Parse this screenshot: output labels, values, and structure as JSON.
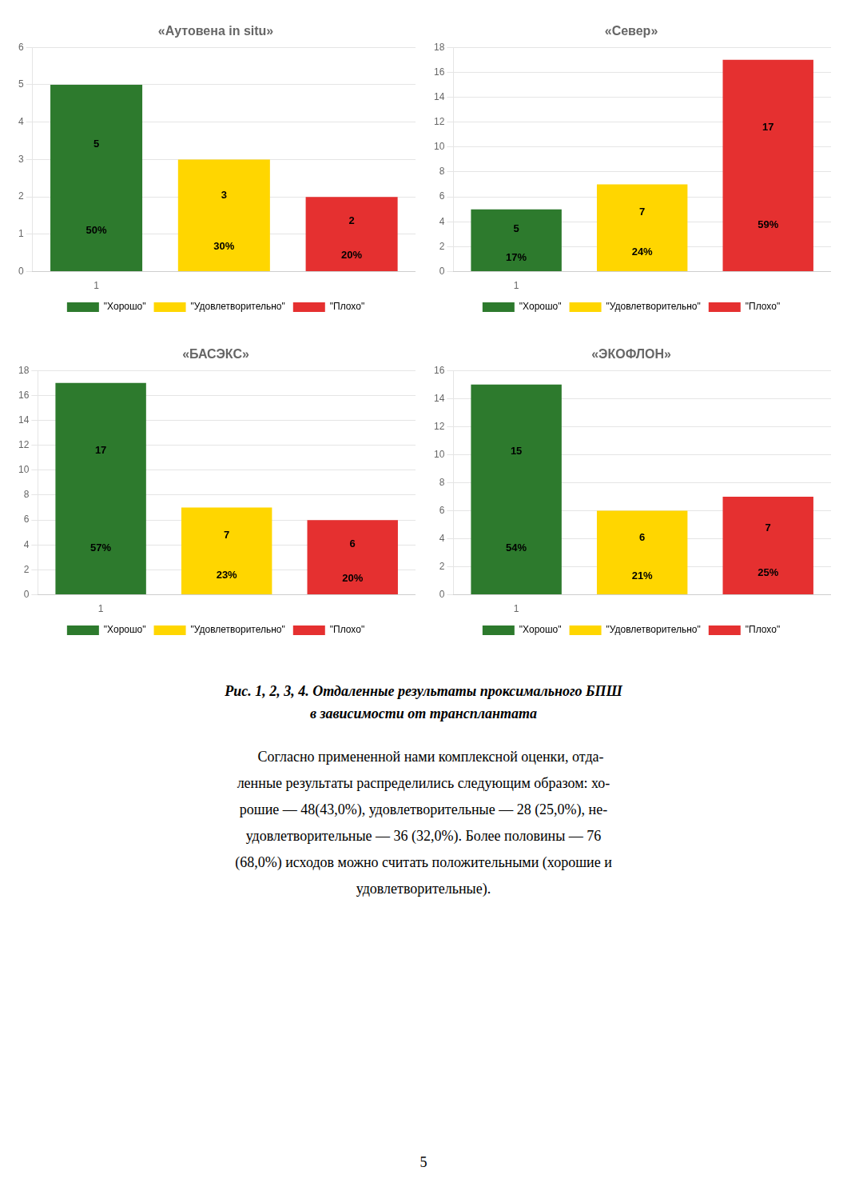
{
  "chart_data": [
    {
      "type": "bar",
      "title": "«Аутовена in situ»",
      "categories": [
        "1",
        null,
        null
      ],
      "values": [
        5,
        3,
        2
      ],
      "percents": [
        50,
        30,
        20
      ],
      "percent_labels": [
        "50%",
        "30%",
        "20%"
      ],
      "colors": [
        "#2d7a2d",
        "#ffd600",
        "#e53030"
      ],
      "legend_labels": [
        "\"Хорошо\"",
        "\"Удовлетворительно\"",
        "\"Плохо\""
      ],
      "legend": "bottom",
      "ylim": [
        0,
        6
      ],
      "yticks": [
        0,
        1,
        2,
        3,
        4,
        5,
        6
      ],
      "grid": true,
      "data_labels": true
    },
    {
      "type": "bar",
      "title": "«Север»",
      "categories": [
        "1",
        null,
        null
      ],
      "values": [
        5,
        7,
        17
      ],
      "percents": [
        17,
        24,
        59
      ],
      "percent_labels": [
        "17%",
        "24%",
        "59%"
      ],
      "colors": [
        "#2d7a2d",
        "#ffd600",
        "#e53030"
      ],
      "legend_labels": [
        "\"Хорошо\"",
        "\"Удовлетворительно\"",
        "\"Плохо\""
      ],
      "legend": "bottom",
      "ylim": [
        0,
        18
      ],
      "yticks": [
        0,
        2,
        4,
        6,
        8,
        10,
        12,
        14,
        16,
        18
      ],
      "grid": true,
      "data_labels": true
    },
    {
      "type": "bar",
      "title": "«БАСЭКС»",
      "categories": [
        "1",
        null,
        null
      ],
      "values": [
        17,
        7,
        6
      ],
      "percents": [
        57,
        23,
        20
      ],
      "percent_labels": [
        "57%",
        "23%",
        "20%"
      ],
      "colors": [
        "#2d7a2d",
        "#ffd600",
        "#e53030"
      ],
      "legend_labels": [
        "\"Хорошо\"",
        "\"Удовлетворительно\"",
        "\"Плохо\""
      ],
      "legend": "bottom",
      "ylim": [
        0,
        18
      ],
      "yticks": [
        0,
        2,
        4,
        6,
        8,
        10,
        12,
        14,
        16,
        18
      ],
      "grid": true,
      "data_labels": true
    },
    {
      "type": "bar",
      "title": "«ЭКОФЛОН»",
      "categories": [
        "1",
        null,
        null
      ],
      "values": [
        15,
        6,
        7
      ],
      "percents": [
        54,
        21,
        25
      ],
      "percent_labels": [
        "54%",
        "21%",
        "25%"
      ],
      "colors": [
        "#2d7a2d",
        "#ffd600",
        "#e53030"
      ],
      "legend_labels": [
        "\"Хорошо\"",
        "\"Удовлетворительно\"",
        "\"Плохо\""
      ],
      "legend": "bottom",
      "ylim": [
        0,
        16
      ],
      "yticks": [
        0,
        2,
        4,
        6,
        8,
        10,
        12,
        14,
        16
      ],
      "grid": true,
      "data_labels": true
    }
  ],
  "caption": [
    "Рис. 1, 2, 3, 4. Отдаленные результаты проксимального БПШ",
    "в зависимости от трансплантата"
  ],
  "body_lines": [
    "    Согласно примененной нами комплексной оценки, отда-",
    "ленные результаты распределились следующим образом: хо-",
    "рошие — 48(43,0%), удовлетворительные — 28 (25,0%), не-",
    "удовлетворительные — 36 (32,0%). Более половины — 76",
    "(68,0%) исходов можно считать положительными (хорошие и",
    "удовлетворительные)."
  ],
  "page_number": "5"
}
